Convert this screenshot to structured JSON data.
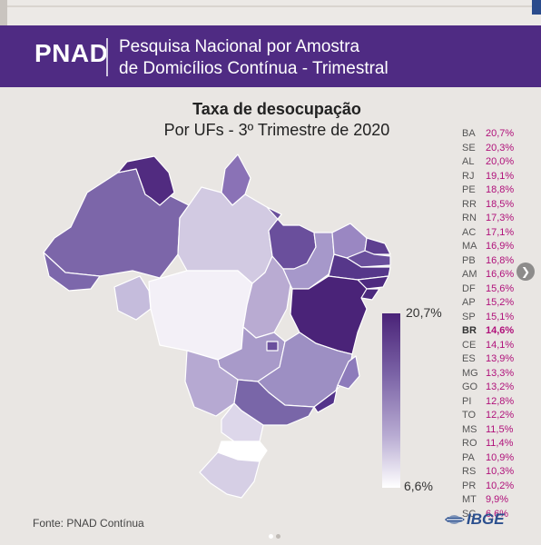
{
  "header": {
    "logo": "PNAD",
    "line1": "Pesquisa Nacional por Amostra",
    "line2": "de Domicílios Contínua - Trimestral"
  },
  "title": "Taxa de desocupação",
  "subtitle": "Por UFs - 3º Trimestre de 2020",
  "scale": {
    "max_label": "20,7%",
    "min_label": "6,6%",
    "dark_color": "#4a2378",
    "light_color": "#ffffff"
  },
  "ranking": [
    {
      "uf": "BA",
      "value": "20,7%"
    },
    {
      "uf": "SE",
      "value": "20,3%"
    },
    {
      "uf": "AL",
      "value": "20,0%"
    },
    {
      "uf": "RJ",
      "value": "19,1%"
    },
    {
      "uf": "PE",
      "value": "18,8%"
    },
    {
      "uf": "RR",
      "value": "18,5%"
    },
    {
      "uf": "RN",
      "value": "17,3%"
    },
    {
      "uf": "AC",
      "value": "17,1%"
    },
    {
      "uf": "MA",
      "value": "16,9%"
    },
    {
      "uf": "PB",
      "value": "16,8%"
    },
    {
      "uf": "AM",
      "value": "16,6%"
    },
    {
      "uf": "DF",
      "value": "15,6%"
    },
    {
      "uf": "AP",
      "value": "15,2%"
    },
    {
      "uf": "SP",
      "value": "15,1%"
    },
    {
      "uf": "BR",
      "value": "14,6%",
      "highlight": true
    },
    {
      "uf": "CE",
      "value": "14,1%"
    },
    {
      "uf": "ES",
      "value": "13,9%"
    },
    {
      "uf": "MG",
      "value": "13,3%"
    },
    {
      "uf": "GO",
      "value": "13,2%"
    },
    {
      "uf": "PI",
      "value": "12,8%"
    },
    {
      "uf": "TO",
      "value": "12,2%"
    },
    {
      "uf": "MS",
      "value": "11,5%"
    },
    {
      "uf": "RO",
      "value": "11,4%"
    },
    {
      "uf": "PA",
      "value": "10,9%"
    },
    {
      "uf": "RS",
      "value": "10,3%"
    },
    {
      "uf": "PR",
      "value": "10,2%"
    },
    {
      "uf": "MT",
      "value": "9,9%"
    },
    {
      "uf": "SC",
      "value": "6,6%"
    }
  ],
  "footer": {
    "source": "Fonte: PNAD Contínua",
    "brand": "IBGE"
  },
  "carousel": {
    "current": 1,
    "total": 2
  },
  "colors": {
    "accent": "#4f2b83",
    "value_text": "#b0107a",
    "brand": "#2b4f8e"
  }
}
